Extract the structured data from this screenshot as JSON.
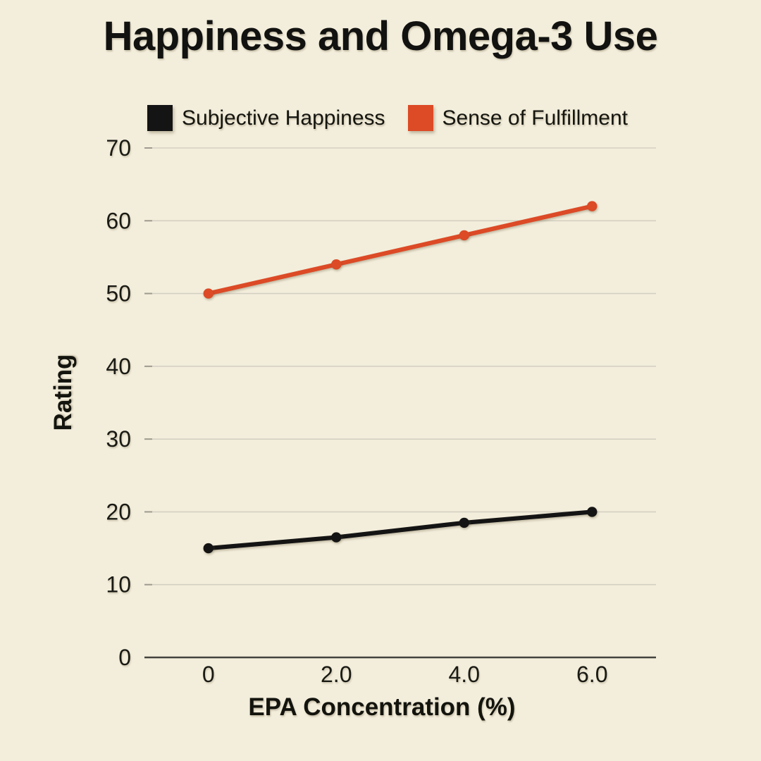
{
  "title": "Happiness and Omega-3 Use",
  "colors": {
    "background": "#F3EEDC",
    "grid": "#D4D0C1",
    "grid_tick": "#9E9B8F",
    "axis": "#45433D",
    "tick_text": "#1A1A14",
    "series_happiness": "#141414",
    "series_fulfillment": "#DC4A26"
  },
  "legend": [
    {
      "label": "Subjective Happiness",
      "color": "#141414"
    },
    {
      "label": "Sense of Fulfillment",
      "color": "#DC4A26"
    }
  ],
  "chart_data": {
    "type": "line",
    "title": "Happiness and Omega-3 Use",
    "xlabel": "EPA Concentration (%)",
    "ylabel": "Rating",
    "x": [
      0,
      2,
      4,
      6
    ],
    "x_tick_labels": [
      "0",
      "2.0",
      "4.0",
      "6.0"
    ],
    "xlim": [
      -1,
      7
    ],
    "ylim": [
      0,
      70
    ],
    "yticks": [
      0,
      10,
      20,
      30,
      40,
      50,
      60,
      70
    ],
    "grid": true,
    "legend_position": "top",
    "series": [
      {
        "name": "Subjective Happiness",
        "color": "#141414",
        "values": [
          15,
          16.5,
          18.5,
          20
        ]
      },
      {
        "name": "Sense of Fulfillment",
        "color": "#DC4A26",
        "values": [
          50,
          54,
          58,
          62
        ]
      }
    ]
  }
}
